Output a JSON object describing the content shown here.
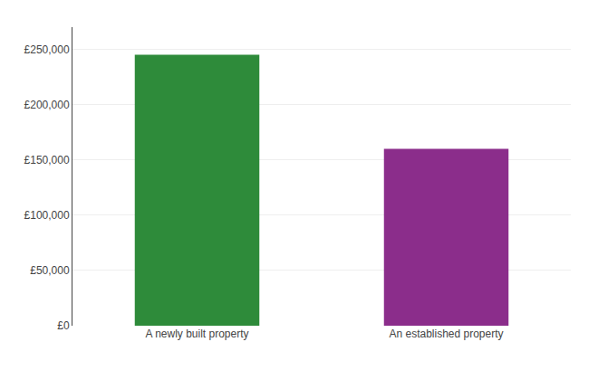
{
  "chart_data": {
    "type": "bar",
    "categories": [
      "A newly built property",
      "An established property"
    ],
    "values": [
      245000,
      160000
    ],
    "colors": [
      "#2e8b3a",
      "#8b2d8b"
    ],
    "ylim": [
      0,
      270000
    ],
    "yticks": [
      {
        "value": 0,
        "label": "£0"
      },
      {
        "value": 50000,
        "label": "£50,000"
      },
      {
        "value": 100000,
        "label": "£100,000"
      },
      {
        "value": 150000,
        "label": "£150,000"
      },
      {
        "value": 200000,
        "label": "£200,000"
      },
      {
        "value": 250000,
        "label": "£250,000"
      }
    ],
    "grid": true
  }
}
